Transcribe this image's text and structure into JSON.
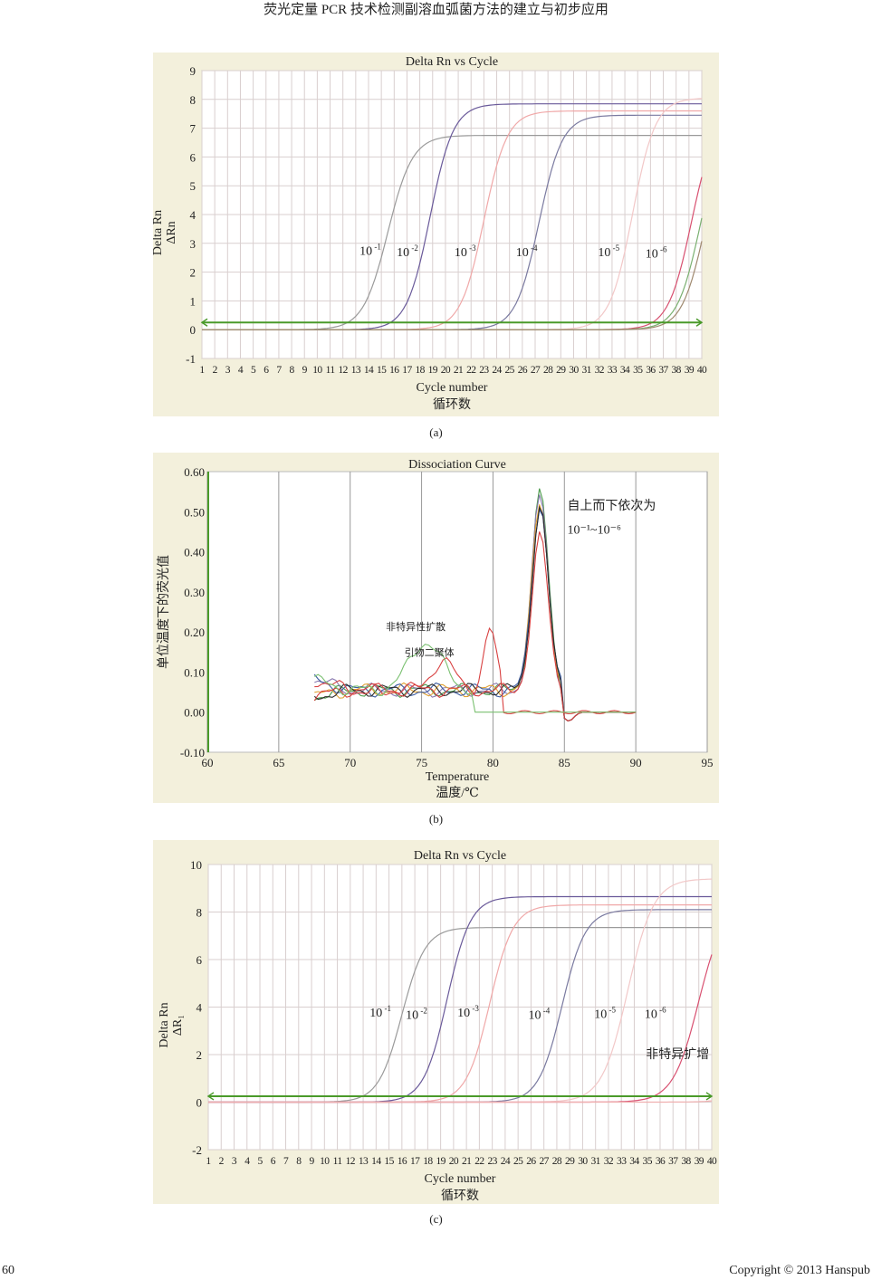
{
  "header": {
    "title": "荧光定量 PCR 技术检测副溶血弧菌方法的建立与初步应用"
  },
  "footer": {
    "page_number": "60",
    "copyright": "Copyright © 2013 Hanspub"
  },
  "colors": {
    "figure_bg": "#f3f0dc",
    "plot_bg": "#ffffff",
    "grid": "#d9cfcf",
    "threshold": "#4a9a2a",
    "series_1": "#9a9a9a",
    "series_2": "#6a5a9a",
    "series_3": "#f0a8a8",
    "series_4": "#7a7aa0",
    "series_5": "#f2c8c8",
    "series_6": "#d85070",
    "series_nonspec": "#7ab070"
  },
  "chart_data": [
    {
      "id": "a",
      "type": "line",
      "caption": "(a)",
      "title": "Delta Rn vs Cycle",
      "xlabel": "Cycle number",
      "xlabel2": "循环数",
      "ylabel": "Delta Rn",
      "ylabel2": "ΔRn",
      "xlim": [
        1,
        40
      ],
      "ylim": [
        -1,
        9
      ],
      "yticks": [
        -1,
        0,
        1,
        2,
        3,
        4,
        5,
        6,
        7,
        8,
        9
      ],
      "x_ticks": [
        1,
        2,
        3,
        4,
        5,
        6,
        7,
        8,
        9,
        10,
        11,
        12,
        13,
        14,
        15,
        16,
        17,
        18,
        19,
        20,
        21,
        22,
        23,
        24,
        25,
        26,
        27,
        28,
        29,
        30,
        31,
        32,
        33,
        34,
        35,
        36,
        37,
        38,
        39,
        40
      ],
      "grid": true,
      "threshold": 0.25,
      "annotations": [
        {
          "base": "10",
          "exp": "-1",
          "x": 13.3,
          "y": 2.6
        },
        {
          "base": "10",
          "exp": "-2",
          "x": 16.2,
          "y": 2.55
        },
        {
          "base": "10",
          "exp": "-3",
          "x": 20.7,
          "y": 2.55
        },
        {
          "base": "10",
          "exp": "-4",
          "x": 25.5,
          "y": 2.55
        },
        {
          "base": "10",
          "exp": "-5",
          "x": 31.9,
          "y": 2.55
        },
        {
          "base": "10",
          "exp": "-6",
          "x": 35.6,
          "y": 2.5
        }
      ],
      "series": [
        {
          "color": "#9a9a9a",
          "ct": 15.5,
          "plateau": 6.75,
          "slope": 0.52,
          "start": 4
        },
        {
          "color": "#6a5a9a",
          "ct": 18.8,
          "plateau": 7.85,
          "slope": 0.55,
          "start": 12
        },
        {
          "color": "#f0a8a8",
          "ct": 23.0,
          "plateau": 7.6,
          "slope": 0.55,
          "start": 13
        },
        {
          "color": "#7a7aa0",
          "ct": 27.3,
          "plateau": 7.45,
          "slope": 0.55,
          "start": 16
        },
        {
          "color": "#f2c8c8",
          "ct": 34.6,
          "plateau": 8.05,
          "slope": 0.56,
          "start": 20
        },
        {
          "color": "#d85070",
          "ct": 39.2,
          "plateau": 7.5,
          "slope": 0.55,
          "start": 22
        },
        {
          "color": "#7ab070",
          "ct": 39.9,
          "plateau": 7.5,
          "slope": 0.55,
          "start": 22
        },
        {
          "color": "#a08a70",
          "ct": 40.3,
          "plateau": 7.5,
          "slope": 0.55,
          "start": 22
        }
      ]
    },
    {
      "id": "b",
      "type": "line",
      "caption": "(b)",
      "title": "Dissociation Curve",
      "xlabel": "Temperature",
      "xlabel2": "温度/℃",
      "ylabel": "单位温度下的荧光值",
      "xlim": [
        60,
        95
      ],
      "ylim": [
        -0.1,
        0.6
      ],
      "xticks": [
        60,
        65,
        70,
        75,
        80,
        85,
        90,
        95
      ],
      "yticks": [
        "-0.10",
        "0.00",
        "0.10",
        "0.20",
        "0.30",
        "0.40",
        "0.50",
        "0.60"
      ],
      "grid": true,
      "annotations": [
        {
          "text": "非特异性扩散",
          "x": 72.5,
          "y": 0.205
        },
        {
          "text": "引物二聚体",
          "x": 73.8,
          "y": 0.14
        },
        {
          "text": "自上而下依次为",
          "x": 85.2,
          "y": 0.505
        },
        {
          "text": "10⁻¹~10⁻⁶",
          "x": 85.2,
          "y": 0.445
        }
      ],
      "series": [
        {
          "color": "#4a9a4a",
          "peak": 0.545
        },
        {
          "color": "#8a7ab0",
          "peak": 0.535
        },
        {
          "color": "#e0a030",
          "peak": 0.525
        },
        {
          "color": "#3a5aa0",
          "peak": 0.515
        },
        {
          "color": "#2a2a2a",
          "peak": 0.505
        },
        {
          "color": "#d84040",
          "peak": 0.43
        },
        {
          "color": "#d84040",
          "peak": 0.0,
          "nonspecific": true
        },
        {
          "color": "#7ac070",
          "peak": 0.0,
          "dimer": true
        }
      ]
    },
    {
      "id": "c",
      "type": "line",
      "caption": "(c)",
      "title": "Delta Rn vs Cycle",
      "xlabel": "Cycle number",
      "xlabel2": "循环数",
      "ylabel": "Delta Rn",
      "ylabel2": "ΔR₁",
      "xlim": [
        1,
        40
      ],
      "ylim": [
        -2,
        10
      ],
      "yticks": [
        -2,
        0,
        2,
        4,
        6,
        8,
        10
      ],
      "x_ticks": [
        1,
        2,
        3,
        4,
        5,
        6,
        7,
        8,
        9,
        10,
        11,
        12,
        13,
        14,
        15,
        16,
        17,
        18,
        19,
        20,
        21,
        22,
        23,
        24,
        25,
        26,
        27,
        28,
        29,
        30,
        31,
        32,
        33,
        34,
        35,
        36,
        37,
        38,
        39,
        40
      ],
      "grid": true,
      "threshold": 0.25,
      "annotations": [
        {
          "base": "10",
          "exp": "-1",
          "x": 13.5,
          "y": 3.6
        },
        {
          "base": "10",
          "exp": "-2",
          "x": 16.3,
          "y": 3.5
        },
        {
          "base": "10",
          "exp": "-3",
          "x": 20.3,
          "y": 3.6
        },
        {
          "base": "10",
          "exp": "-4",
          "x": 25.8,
          "y": 3.5
        },
        {
          "base": "10",
          "exp": "-5",
          "x": 30.9,
          "y": 3.55
        },
        {
          "base": "10",
          "exp": "-6",
          "x": 34.8,
          "y": 3.55
        },
        {
          "text": "非特异扩增",
          "x": 34.9,
          "y": 1.85
        }
      ],
      "series": [
        {
          "color": "#9a9a9a",
          "ct": 16.0,
          "plateau": 7.35,
          "slope": 0.55,
          "start": 5
        },
        {
          "color": "#6a5a9a",
          "ct": 19.5,
          "plateau": 8.65,
          "slope": 0.55,
          "start": 12
        },
        {
          "color": "#f0a8a8",
          "ct": 22.8,
          "plateau": 8.3,
          "slope": 0.55,
          "start": 14
        },
        {
          "color": "#7a7aa0",
          "ct": 28.4,
          "plateau": 8.1,
          "slope": 0.55,
          "start": 18
        },
        {
          "color": "#f2c8c8",
          "ct": 33.5,
          "plateau": 9.4,
          "slope": 0.5,
          "start": 21
        },
        {
          "color": "#d85070",
          "ct": 39.0,
          "plateau": 8.5,
          "slope": 0.5,
          "start": 24
        },
        {
          "color": "#f0b0b0",
          "ct": 45.0,
          "plateau": 8.0,
          "slope": 0.5,
          "start": 30
        }
      ]
    }
  ]
}
